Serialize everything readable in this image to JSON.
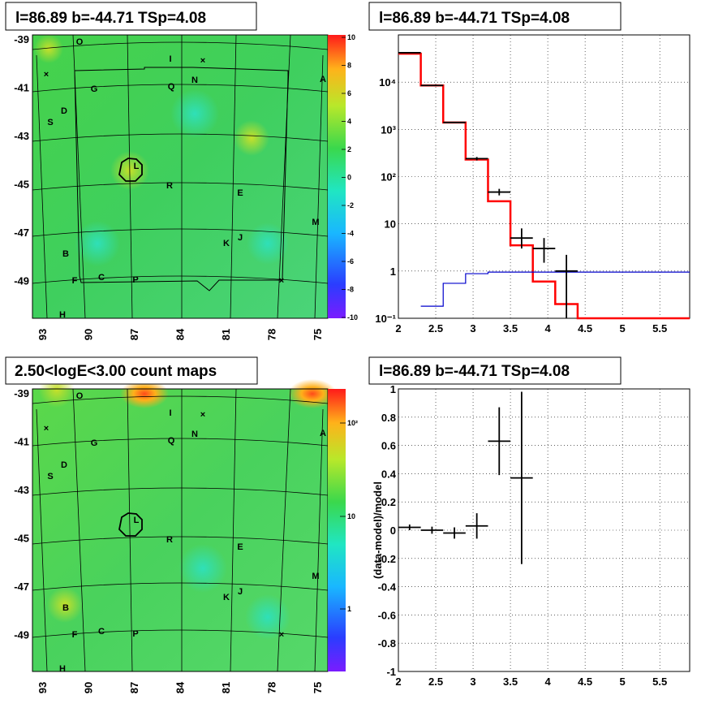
{
  "panels": {
    "tl_title": "l=86.89 b=-44.71 TSp=4.08",
    "tr_title": "l=86.89 b=-44.71 TSp=4.08",
    "bl_title": "2.50<logE<3.00 count maps",
    "br_title": "l=86.89 b=-44.71 TSp=4.08"
  },
  "sky_maps": {
    "y_ticks": [
      "-39",
      "-41",
      "-43",
      "-45",
      "-47",
      "-49"
    ],
    "x_ticks": [
      "93",
      "90",
      "87",
      "84",
      "81",
      "78",
      "75"
    ],
    "sources": [
      "O",
      "I",
      "N",
      "A",
      "G",
      "Q",
      "D",
      "S",
      "L",
      "R",
      "E",
      "M",
      "K",
      "J",
      "B",
      "F",
      "C",
      "P",
      "H"
    ],
    "colorbar_top_ticks": [
      "10",
      "8",
      "6",
      "4",
      "2",
      "0",
      "-2",
      "-4",
      "-6",
      "-8",
      "-10"
    ],
    "colorbar_bottom_ticks": [
      "10²",
      "10",
      "1"
    ]
  },
  "chart_data": [
    {
      "type": "line",
      "title": "l=86.89 b=-44.71 TSp=4.08",
      "xlabel": "",
      "ylabel": "",
      "xlim": [
        2,
        5.9
      ],
      "ylim": [
        0.1,
        100000
      ],
      "y_scale": "log",
      "x_ticks": [
        "2",
        "2.5",
        "3",
        "3.5",
        "4",
        "4.5",
        "5",
        "5.5"
      ],
      "y_ticks": [
        "10⁻¹",
        "1",
        "10",
        "10²",
        "10³",
        "10⁴"
      ],
      "grid": true,
      "series": [
        {
          "color": "#ff0000",
          "style": "step",
          "bin_edges": [
            2.0,
            2.3,
            2.6,
            2.9,
            3.2,
            3.5,
            3.8,
            4.1,
            4.4,
            5.9
          ],
          "values": [
            40000,
            8500,
            1400,
            230,
            30,
            3.5,
            0.6,
            0.2,
            0.1
          ]
        },
        {
          "color": "#0000cc",
          "style": "step",
          "bin_edges": [
            2.3,
            2.6,
            2.9,
            3.2,
            5.9
          ],
          "values": [
            0.18,
            0.55,
            0.88,
            0.95
          ]
        },
        {
          "color": "#000000",
          "style": "errorbar",
          "points": [
            {
              "x": 2.15,
              "y": 42000,
              "xerr": 0.15,
              "ylo": 42000,
              "yhi": 42000
            },
            {
              "x": 2.45,
              "y": 8500,
              "xerr": 0.15,
              "ylo": 8500,
              "yhi": 8500
            },
            {
              "x": 2.75,
              "y": 1400,
              "xerr": 0.15,
              "ylo": 1400,
              "yhi": 1400
            },
            {
              "x": 3.05,
              "y": 240,
              "xerr": 0.15,
              "ylo": 220,
              "yhi": 260
            },
            {
              "x": 3.35,
              "y": 47,
              "xerr": 0.15,
              "ylo": 40,
              "yhi": 55
            },
            {
              "x": 3.65,
              "y": 5,
              "xerr": 0.15,
              "ylo": 3,
              "yhi": 8
            },
            {
              "x": 3.95,
              "y": 3,
              "xerr": 0.15,
              "ylo": 1.5,
              "yhi": 5
            },
            {
              "x": 4.25,
              "y": 1,
              "xerr": 0.15,
              "ylo": 0.1,
              "yhi": 2.2
            }
          ]
        }
      ]
    },
    {
      "type": "scatter",
      "title": "l=86.89 b=-44.71 TSp=4.08",
      "xlabel": "",
      "ylabel": "(data-model)/model",
      "xlim": [
        2,
        5.9
      ],
      "ylim": [
        -1,
        1
      ],
      "x_ticks": [
        "2",
        "2.5",
        "3",
        "3.5",
        "4",
        "4.5",
        "5",
        "5.5"
      ],
      "y_ticks": [
        "1",
        "0.8",
        "0.6",
        "0.4",
        "0.2",
        "0",
        "-0.2",
        "-0.4",
        "-0.6",
        "-0.8",
        "-1"
      ],
      "grid": true,
      "points": [
        {
          "x": 2.15,
          "y": 0.02,
          "xerr": 0.15,
          "yerr": 0.02
        },
        {
          "x": 2.45,
          "y": 0.0,
          "xerr": 0.15,
          "yerr": 0.025
        },
        {
          "x": 2.75,
          "y": -0.02,
          "xerr": 0.15,
          "yerr": 0.04
        },
        {
          "x": 3.05,
          "y": 0.03,
          "xerr": 0.15,
          "yerr": 0.09
        },
        {
          "x": 3.35,
          "y": 0.63,
          "xerr": 0.15,
          "yerr": 0.24
        },
        {
          "x": 3.65,
          "y": 0.37,
          "xerr": 0.15,
          "yerr": 0.61
        }
      ]
    }
  ]
}
